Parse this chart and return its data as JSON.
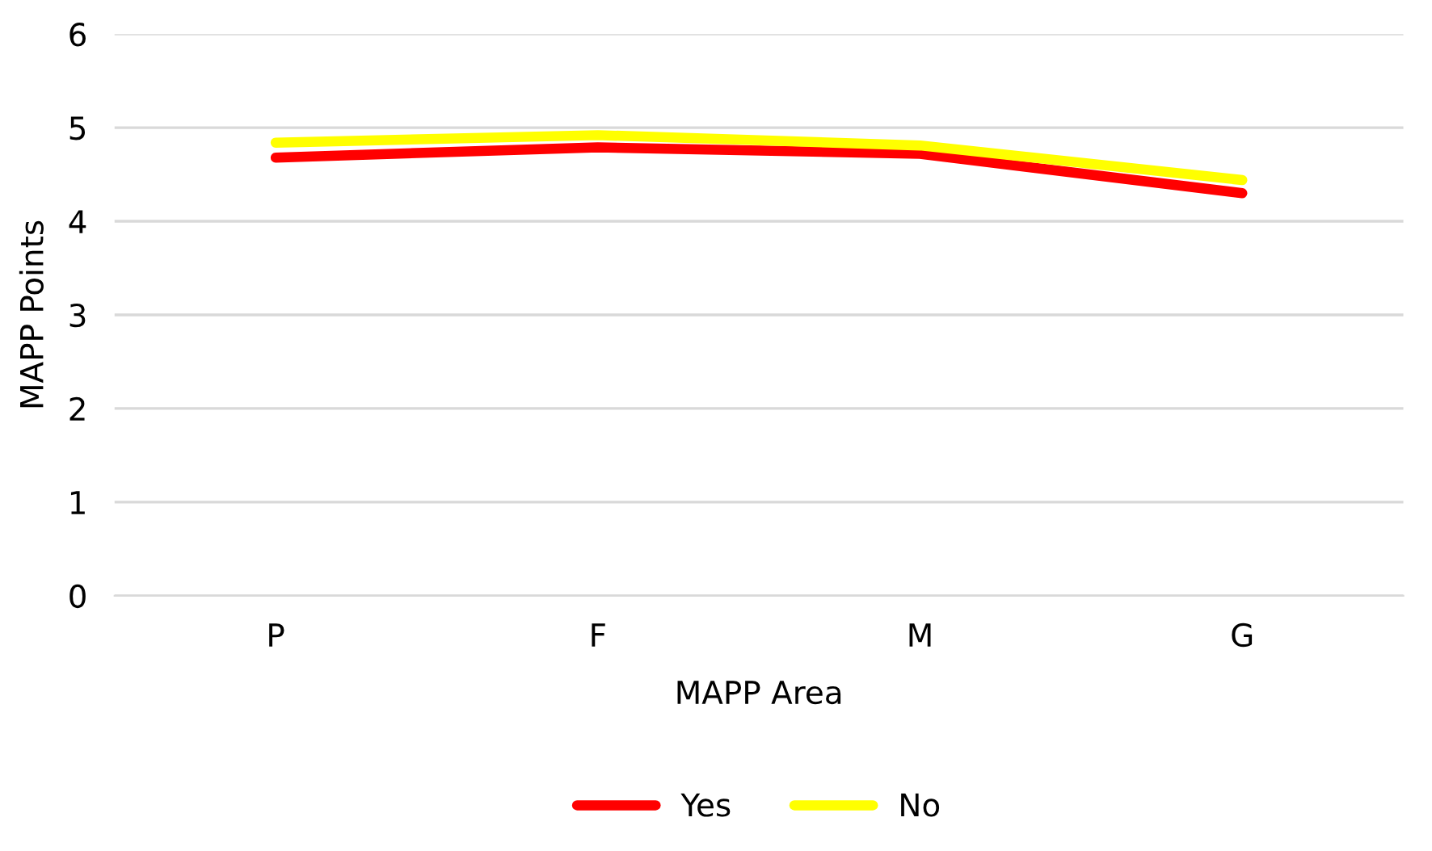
{
  "chart_data": {
    "type": "line",
    "xlabel": "MAPP Area",
    "ylabel": "MAPP Points",
    "categories": [
      "P",
      "F",
      "M",
      "G"
    ],
    "series": [
      {
        "name": "Yes",
        "color": "#ff0000",
        "values": [
          4.68,
          4.79,
          4.72,
          4.3
        ]
      },
      {
        "name": "No",
        "color": "#ffff00",
        "values": [
          4.84,
          4.92,
          4.81,
          4.44
        ]
      }
    ],
    "ylim": [
      0,
      6
    ],
    "yticks": [
      0,
      1,
      2,
      3,
      4,
      5,
      6
    ],
    "grid": "y",
    "legend": "bottom",
    "marker": "none",
    "line_style": "solid"
  }
}
